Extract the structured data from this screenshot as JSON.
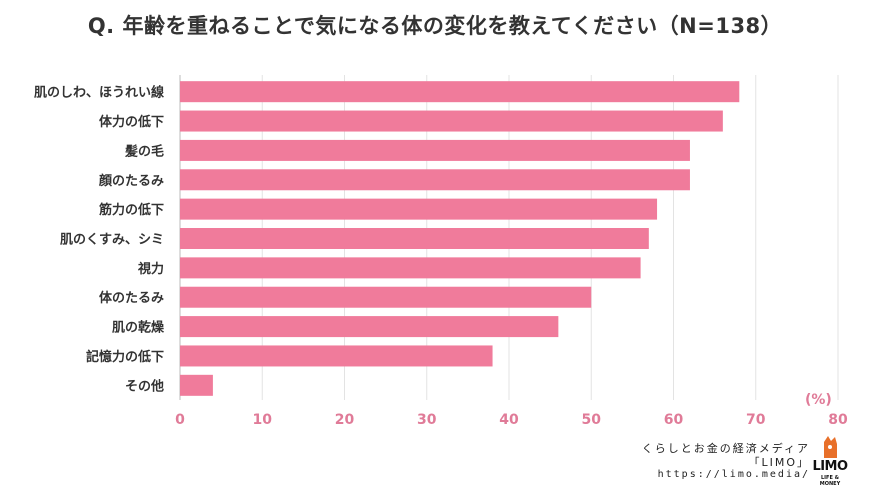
{
  "title": "Q. 年齢を重ねることで気になる体の変化を教えてください（N=138）",
  "chart_data": {
    "type": "bar",
    "orientation": "horizontal",
    "categories": [
      "肌のしわ、ほうれい線",
      "体力の低下",
      "髪の毛",
      "顔のたるみ",
      "筋力の低下",
      "肌のくすみ、シミ",
      "視力",
      "体のたるみ",
      "肌の乾燥",
      "記憶力の低下",
      "その他"
    ],
    "values": [
      68,
      66,
      62,
      62,
      58,
      57,
      56,
      50,
      46,
      38,
      4
    ],
    "xlim": [
      0,
      80
    ],
    "xticks": [
      "0",
      "10",
      "20",
      "30",
      "40",
      "50",
      "60",
      "70",
      "80"
    ],
    "unit_label": "(%)",
    "grid": "vertical",
    "bar_color": "#f07b9b",
    "tick_color": "#e07b98"
  },
  "branding": {
    "line1": "くらしとお金の経済メディア",
    "line2": "「LIMO」",
    "line3": "https://limo.media/",
    "logo_word": "LIMO",
    "logo_sub": "LIFE & MONEY",
    "logo_color": "#e8702a"
  }
}
